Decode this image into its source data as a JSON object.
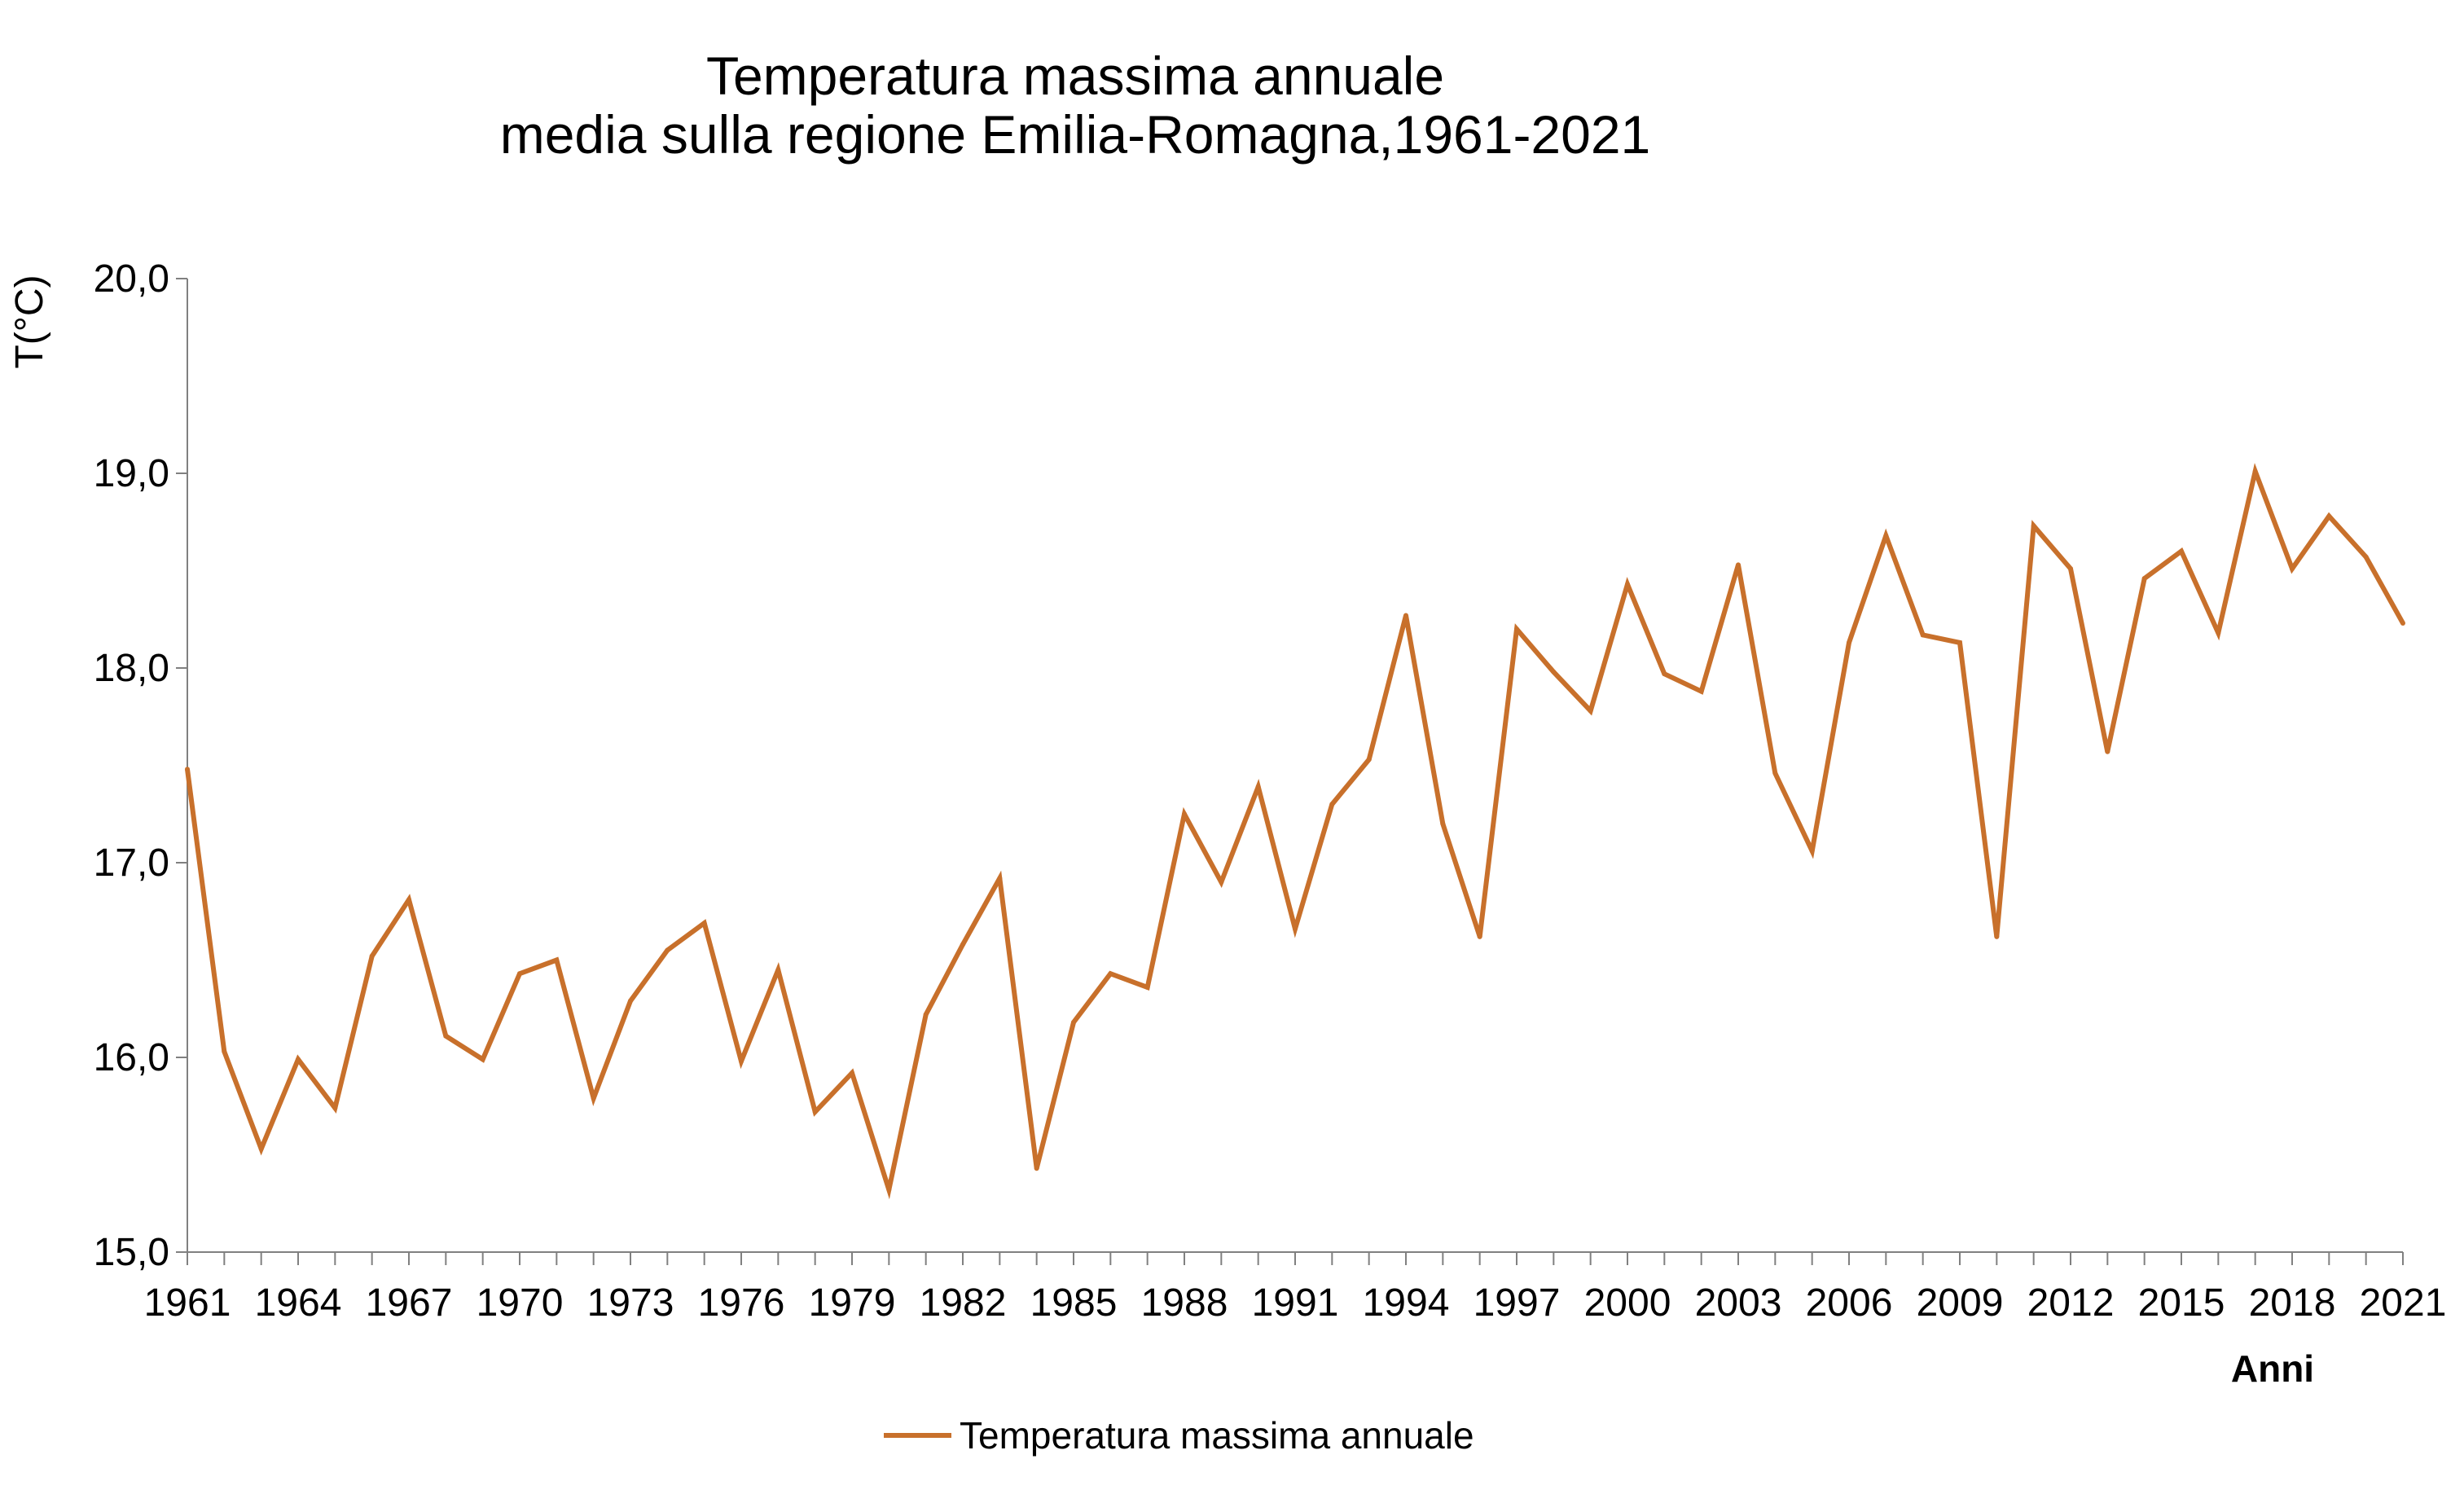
{
  "chart_data": {
    "type": "line",
    "title": "Temperatura massima annuale",
    "subtitle": "media sulla regione Emilia-Romagna,1961-2021",
    "xlabel": "Anni",
    "ylabel": "T(°C)",
    "ylim": [
      15.0,
      20.0
    ],
    "yticks": [
      "15,0",
      "16,0",
      "17,0",
      "18,0",
      "19,0",
      "20,0"
    ],
    "xlim": [
      1961,
      2021
    ],
    "xticks": [
      "1961",
      "1964",
      "1967",
      "1970",
      "1973",
      "1976",
      "1979",
      "1982",
      "1985",
      "1988",
      "1991",
      "1994",
      "1997",
      "2000",
      "2003",
      "2006",
      "2009",
      "2012",
      "2015",
      "2018",
      "2021"
    ],
    "grid": false,
    "legend": "bottom-center",
    "color": "#C8702B",
    "series": [
      {
        "name": "Temperatura massima annuale",
        "x": [
          1961,
          1962,
          1963,
          1964,
          1965,
          1966,
          1967,
          1968,
          1969,
          1970,
          1971,
          1972,
          1973,
          1974,
          1975,
          1976,
          1977,
          1978,
          1979,
          1980,
          1981,
          1982,
          1983,
          1984,
          1985,
          1986,
          1987,
          1988,
          1989,
          1990,
          1991,
          1992,
          1993,
          1994,
          1995,
          1996,
          1997,
          1998,
          1999,
          2000,
          2001,
          2002,
          2003,
          2004,
          2005,
          2006,
          2007,
          2008,
          2009,
          2010,
          2011,
          2012,
          2013,
          2014,
          2015,
          2016,
          2017,
          2018,
          2019,
          2020,
          2021
        ],
        "values": [
          17.48,
          16.03,
          15.53,
          15.99,
          15.74,
          16.52,
          16.81,
          16.11,
          15.99,
          16.43,
          16.5,
          15.79,
          16.29,
          16.55,
          16.69,
          15.98,
          16.45,
          15.72,
          15.92,
          15.32,
          16.22,
          16.58,
          16.92,
          15.43,
          16.18,
          16.43,
          16.36,
          17.25,
          16.9,
          17.39,
          16.66,
          17.3,
          17.53,
          18.27,
          17.2,
          16.62,
          18.2,
          17.98,
          17.78,
          18.43,
          17.97,
          17.88,
          18.53,
          17.46,
          17.06,
          18.13,
          18.68,
          18.17,
          18.13,
          16.62,
          18.73,
          18.51,
          17.57,
          18.46,
          18.6,
          18.18,
          19.01,
          18.51,
          18.78,
          18.57,
          18.23
        ]
      }
    ]
  }
}
